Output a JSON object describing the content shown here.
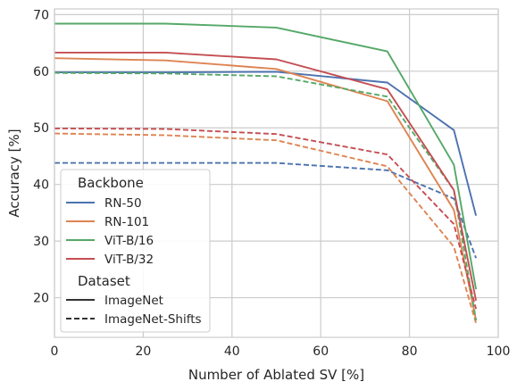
{
  "chart_data": {
    "type": "line",
    "xlabel": "Number of Ablated SV [%]",
    "ylabel": "Accuracy [%]",
    "xlim": [
      0,
      100
    ],
    "ylim": [
      13,
      71
    ],
    "xticks": [
      0,
      20,
      40,
      60,
      80,
      100
    ],
    "yticks": [
      20,
      30,
      40,
      50,
      60,
      70
    ],
    "grid": true,
    "legend_placement": "lower-left",
    "x": [
      0,
      25,
      50,
      75,
      90,
      95
    ],
    "backbones": [
      {
        "name": "RN-50",
        "color": "#4c72b0"
      },
      {
        "name": "RN-101",
        "color": "#dd8452"
      },
      {
        "name": "ViT-B/16",
        "color": "#55a868"
      },
      {
        "name": "ViT-B/32",
        "color": "#c44e52"
      }
    ],
    "datasets": [
      {
        "name": "ImageNet",
        "style": "solid"
      },
      {
        "name": "ImageNet-Shifts",
        "style": "dashed"
      }
    ],
    "series": [
      {
        "backbone": "RN-50",
        "dataset": "ImageNet",
        "values": [
          59.8,
          59.8,
          59.9,
          58.0,
          49.6,
          34.5
        ]
      },
      {
        "backbone": "RN-50",
        "dataset": "ImageNet-Shifts",
        "values": [
          43.8,
          43.8,
          43.8,
          42.5,
          37.5,
          27.0
        ]
      },
      {
        "backbone": "RN-101",
        "dataset": "ImageNet",
        "values": [
          62.3,
          61.9,
          60.4,
          54.7,
          35.5,
          16.0
        ]
      },
      {
        "backbone": "RN-101",
        "dataset": "ImageNet-Shifts",
        "values": [
          49.0,
          48.7,
          47.8,
          43.2,
          29.0,
          15.5
        ]
      },
      {
        "backbone": "ViT-B/16",
        "dataset": "ImageNet",
        "values": [
          68.4,
          68.4,
          67.7,
          63.5,
          43.5,
          21.5
        ]
      },
      {
        "backbone": "ViT-B/16",
        "dataset": "ImageNet-Shifts",
        "values": [
          59.7,
          59.6,
          59.1,
          55.5,
          39.0,
          16.0
        ]
      },
      {
        "backbone": "ViT-B/32",
        "dataset": "ImageNet",
        "values": [
          63.3,
          63.3,
          62.1,
          56.8,
          39.0,
          19.5
        ]
      },
      {
        "backbone": "ViT-B/32",
        "dataset": "ImageNet-Shifts",
        "values": [
          49.9,
          49.8,
          48.9,
          45.3,
          33.0,
          18.0
        ]
      }
    ]
  },
  "legend": {
    "backbone_title": "Backbone",
    "dataset_title": "Dataset"
  }
}
